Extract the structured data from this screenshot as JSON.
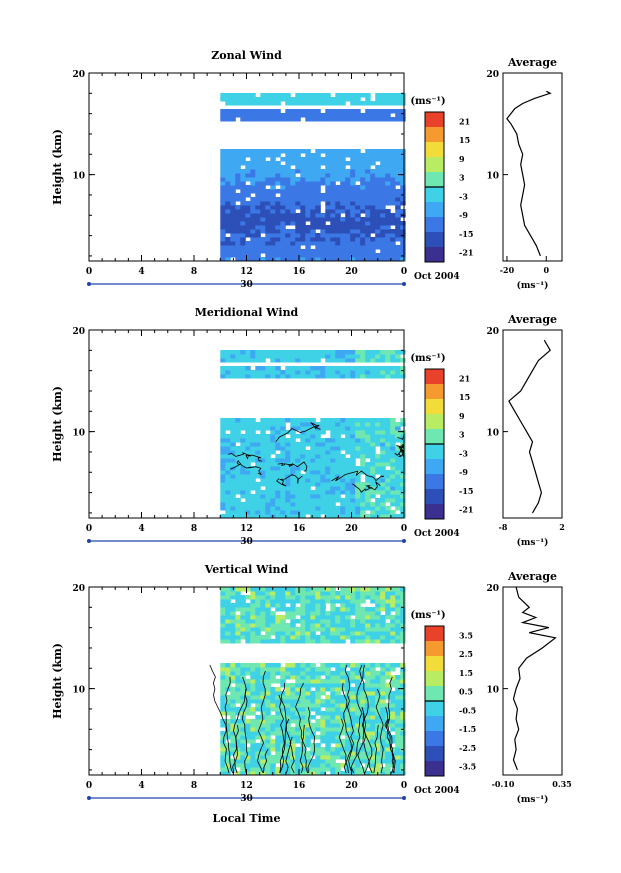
{
  "figure": {
    "units_label": "(ms⁻¹)",
    "time_label": "Oct 2004",
    "day_label": "30",
    "local_time_label": "Local Time",
    "height_label": "Height (km)",
    "average_title": "Average",
    "avg_xlabel": "(ms⁻¹)"
  },
  "chart_data": [
    {
      "type": "heatmap",
      "title": "Zonal Wind",
      "ylabel": "Height (km)",
      "x_ticks": [
        "0",
        "4",
        "8",
        "12",
        "16",
        "20",
        "0"
      ],
      "y_ticks": [
        "20",
        "10"
      ],
      "xlim": [
        0,
        24
      ],
      "ylim": [
        1.5,
        20
      ],
      "colorbar": {
        "label": "(ms⁻¹)",
        "ticks": [
          "21",
          "15",
          "9",
          "3",
          "-3",
          "-9",
          "-15",
          "-21"
        ],
        "range": [
          -24,
          24
        ],
        "midline": 0
      },
      "data_start_hour": 10,
      "coverage_km": [
        [
          1.5,
          12.5
        ],
        [
          15.2,
          16.2
        ],
        [
          16.8,
          17.8
        ]
      ],
      "dominant_values": "-9 to -15 below 12 km, ~-3 at 16–18 km",
      "average": {
        "title": "Average",
        "xlabel": "(ms⁻¹)",
        "x_ticks": [
          "-20",
          "0"
        ],
        "xlim": [
          -22,
          8
        ],
        "y_ticks": [
          "20",
          "10"
        ],
        "profile": [
          [
            2,
            -3
          ],
          [
            3,
            -5
          ],
          [
            4,
            -8
          ],
          [
            5,
            -11
          ],
          [
            6,
            -12
          ],
          [
            7,
            -13
          ],
          [
            8,
            -12
          ],
          [
            9,
            -11
          ],
          [
            10,
            -12
          ],
          [
            11,
            -13
          ],
          [
            12,
            -12
          ],
          [
            13,
            -14
          ],
          [
            14,
            -15
          ],
          [
            15,
            -18
          ],
          [
            15.5,
            -20
          ],
          [
            16,
            -18
          ],
          [
            16.5,
            -16
          ],
          [
            17,
            -12
          ],
          [
            17.5,
            -6
          ],
          [
            18,
            2
          ],
          [
            18.2,
            0
          ]
        ]
      }
    },
    {
      "type": "heatmap",
      "title": "Meridional Wind",
      "ylabel": "Height (km)",
      "x_ticks": [
        "0",
        "4",
        "8",
        "12",
        "16",
        "20",
        "0"
      ],
      "y_ticks": [
        "20",
        "10"
      ],
      "xlim": [
        0,
        24
      ],
      "ylim": [
        1.5,
        20
      ],
      "colorbar": {
        "label": "(ms⁻¹)",
        "ticks": [
          "21",
          "15",
          "9",
          "3",
          "-3",
          "-9",
          "-15",
          "-21"
        ],
        "range": [
          -24,
          24
        ],
        "midline": 0
      },
      "data_start_hour": 10,
      "coverage_km": [
        [
          1.5,
          11
        ],
        [
          15.2,
          16.2
        ],
        [
          16.8,
          17.8
        ]
      ],
      "dominant_values": "-3 to -9 with patches near 0 to +3",
      "average": {
        "title": "Average",
        "xlabel": "(ms⁻¹)",
        "x_ticks": [
          "-8",
          "2"
        ],
        "xlim": [
          -8,
          2
        ],
        "y_ticks": [
          "20",
          "10"
        ],
        "profile": [
          [
            2,
            -3
          ],
          [
            3,
            -2
          ],
          [
            4,
            -1.5
          ],
          [
            5,
            -2
          ],
          [
            6,
            -2.5
          ],
          [
            7,
            -3
          ],
          [
            8,
            -3.5
          ],
          [
            9,
            -3
          ],
          [
            10,
            -4
          ],
          [
            11,
            -5
          ],
          [
            12,
            -6
          ],
          [
            13,
            -7
          ],
          [
            14,
            -5
          ],
          [
            15,
            -4
          ],
          [
            16,
            -3
          ],
          [
            17,
            -2
          ],
          [
            18,
            0
          ],
          [
            19,
            -1
          ]
        ]
      }
    },
    {
      "type": "heatmap",
      "title": "Vertical Wind",
      "ylabel": "Height (km)",
      "xlabel": "Local Time",
      "x_ticks": [
        "0",
        "4",
        "8",
        "12",
        "16",
        "20",
        "0"
      ],
      "y_ticks": [
        "20",
        "10"
      ],
      "xlim": [
        0,
        24
      ],
      "ylim": [
        1.5,
        20
      ],
      "colorbar": {
        "label": "(ms⁻¹)",
        "ticks": [
          "3.5",
          "2.5",
          "1.5",
          "0.5",
          "-0.5",
          "-1.5",
          "-2.5",
          "-3.5"
        ],
        "range": [
          -4,
          4
        ],
        "midline": 0
      },
      "data_start_hour": 10,
      "coverage_km": [
        [
          1.5,
          12.5
        ],
        [
          14.2,
          20
        ]
      ],
      "dominant_values": "-0.5 to 0.5",
      "average": {
        "title": "Average",
        "xlabel": "(ms⁻¹)",
        "x_ticks": [
          "-0.10",
          "0.35"
        ],
        "xlim": [
          -0.1,
          0.35
        ],
        "y_ticks": [
          "20",
          "10"
        ],
        "profile": [
          [
            2,
            0.01
          ],
          [
            3,
            -0.02
          ],
          [
            4,
            0.0
          ],
          [
            5,
            -0.01
          ],
          [
            6,
            0.02
          ],
          [
            7,
            0.0
          ],
          [
            8,
            0.01
          ],
          [
            9,
            -0.02
          ],
          [
            10,
            0.0
          ],
          [
            11,
            0.03
          ],
          [
            12,
            0.02
          ],
          [
            13,
            0.08
          ],
          [
            14,
            0.2
          ],
          [
            15,
            0.3
          ],
          [
            15.5,
            0.1
          ],
          [
            16,
            0.25
          ],
          [
            16.5,
            0.05
          ],
          [
            17,
            0.15
          ],
          [
            17.5,
            0.05
          ],
          [
            18,
            0.1
          ],
          [
            19,
            0.02
          ],
          [
            20,
            0.0
          ]
        ]
      }
    }
  ]
}
